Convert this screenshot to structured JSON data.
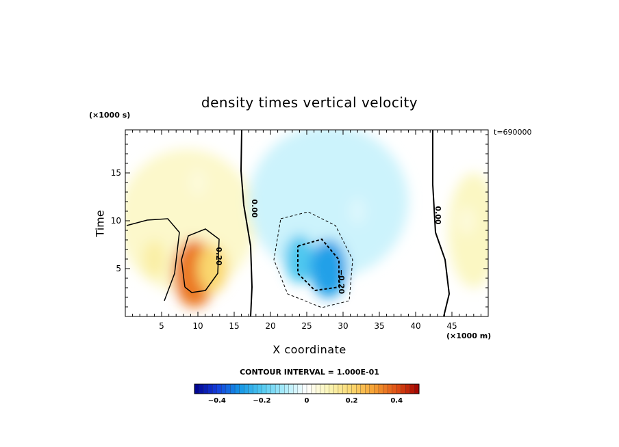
{
  "chart_data": {
    "type": "heatmap",
    "title": "density times vertical velocity",
    "xlabel": "X coordinate",
    "ylabel": "Time",
    "x_unit": "(×1000 m)",
    "y_unit": "(×1000 s)",
    "time_stamp": "t=690000",
    "xlim": [
      0,
      50
    ],
    "ylim": [
      0,
      19.5
    ],
    "x_ticks": [
      5,
      10,
      15,
      20,
      25,
      30,
      35,
      40,
      45
    ],
    "y_ticks": [
      5,
      10,
      15
    ],
    "contour_interval_text": "CONTOUR INTERVAL = 1.000E-01",
    "colorbar": {
      "min": -0.5,
      "max": 0.5,
      "tick_values": [
        -0.4,
        -0.2,
        0,
        0.2,
        0.4
      ],
      "tick_labels": [
        "−0.4",
        "−0.2",
        "0",
        "0.2",
        "0.4"
      ]
    },
    "contour_labels": [
      "0.00",
      "0.20",
      "−0.20",
      "0.00"
    ],
    "features": [
      {
        "x": 9.5,
        "y": 4.5,
        "value": 0.35
      },
      {
        "x": 12.0,
        "y": 5.0,
        "value": 0.2
      },
      {
        "x": 4.0,
        "y": 6.0,
        "value": 0.12
      },
      {
        "x": 10.0,
        "y": 14.0,
        "value": 0.05
      },
      {
        "x": 24.0,
        "y": 6.0,
        "value": -0.2
      },
      {
        "x": 28.0,
        "y": 5.0,
        "value": -0.28
      },
      {
        "x": 32.0,
        "y": 11.0,
        "value": -0.04
      },
      {
        "x": 47.0,
        "y": 10.0,
        "value": 0.05
      }
    ]
  }
}
